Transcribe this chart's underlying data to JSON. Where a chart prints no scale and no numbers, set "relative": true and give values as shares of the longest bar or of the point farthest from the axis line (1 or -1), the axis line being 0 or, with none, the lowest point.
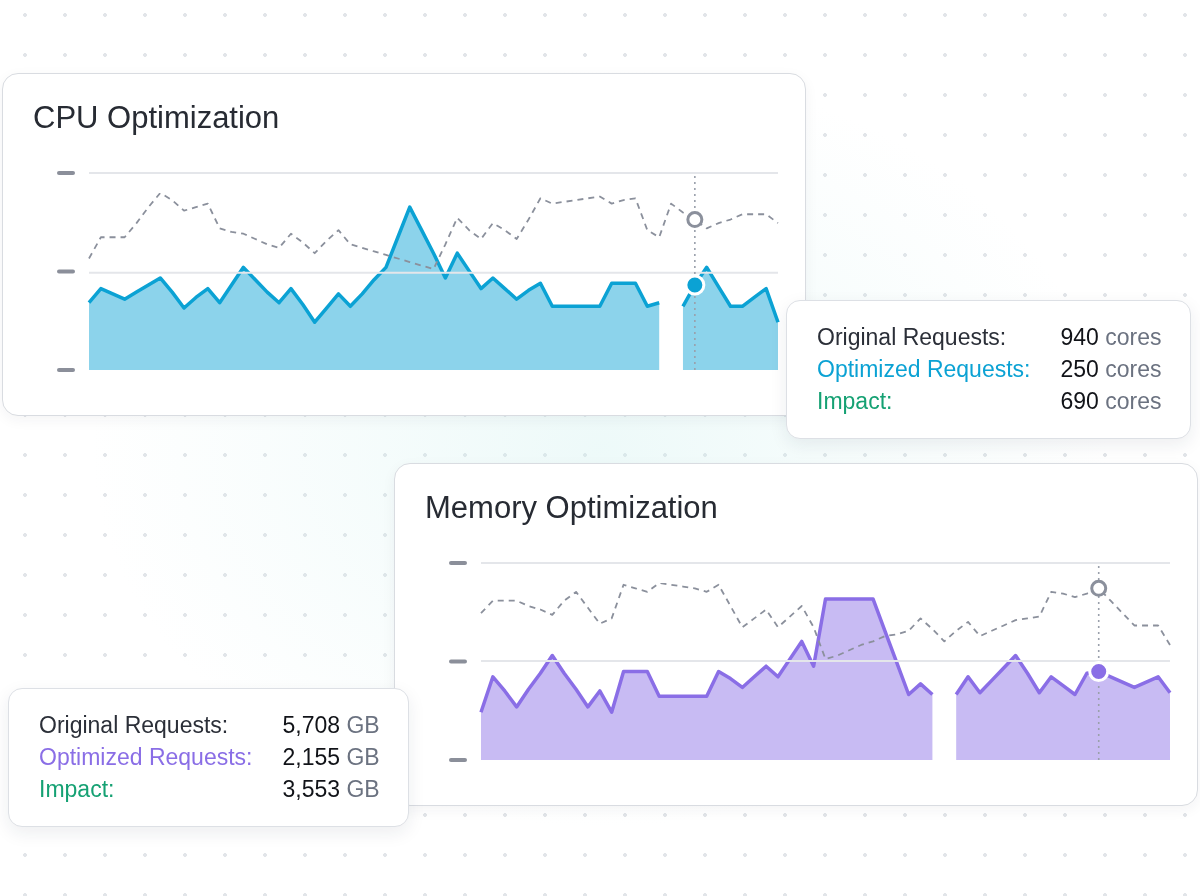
{
  "chart_data": [
    {
      "type": "area",
      "title": "CPU Optimization",
      "relative": true,
      "categories": [
        null,
        null,
        null,
        null,
        null,
        null,
        null,
        null,
        null,
        null,
        null,
        null,
        null,
        null,
        null,
        null,
        null,
        null,
        null,
        null,
        null,
        null,
        null,
        null,
        null,
        null,
        null,
        null,
        null,
        null,
        null,
        null,
        null,
        null,
        null,
        null,
        null,
        null,
        null,
        null,
        null,
        null,
        null,
        null,
        null,
        null,
        null,
        null,
        null,
        null,
        null,
        null,
        null,
        null,
        null,
        null,
        null,
        null,
        null
      ],
      "series": [
        {
          "color": "#0ba2d4",
          "values": [
            0.38,
            0.46,
            0.43,
            0.4,
            0.44,
            0.48,
            0.52,
            0.44,
            0.35,
            0.41,
            0.46,
            0.38,
            0.48,
            0.58,
            0.51,
            0.44,
            0.38,
            0.46,
            0.37,
            0.27,
            0.35,
            0.43,
            0.36,
            0.43,
            0.51,
            0.58,
            0.75,
            0.92,
            0.79,
            0.66,
            0.52,
            0.66,
            0.56,
            0.46,
            0.52,
            0.46,
            0.4,
            0.45,
            0.49,
            0.36,
            0.36,
            0.36,
            0.36,
            0.36,
            0.49,
            0.49,
            0.49,
            0.36,
            0.38,
            null,
            0.36,
            0.48,
            0.58,
            0.47,
            0.36,
            0.36,
            0.41,
            0.46,
            0.27
          ]
        },
        {
          "type": "line",
          "color": "#8b909c",
          "line_style": "dashed",
          "values": [
            0.63,
            0.75,
            0.75,
            0.75,
            0.83,
            0.92,
            1,
            0.96,
            0.9,
            0.92,
            0.94,
            0.8,
            0.78,
            0.77,
            0.74,
            0.71,
            0.69,
            0.77,
            0.72,
            0.66,
            0.73,
            0.79,
            0.71,
            0.69,
            0.67,
            0.65,
            0.63,
            0.61,
            0.59,
            0.57,
            0.71,
            0.86,
            0.79,
            0.74,
            0.83,
            0.79,
            0.74,
            0.85,
            0.97,
            0.94,
            0.95,
            0.96,
            0.97,
            0.98,
            0.94,
            0.96,
            0.97,
            0.79,
            0.75,
            0.94,
            0.89,
            0.85,
            0.8,
            0.83,
            0.85,
            0.88,
            0.88,
            0.88,
            0.83
          ]
        }
      ],
      "ref_lines": [
        {
          "axis": "y",
          "value": 0.55,
          "color": "#e4e6ea"
        }
      ],
      "annotations": [
        "Original Requests:",
        "940 cores",
        "Optimized Requests:",
        "250 cores",
        "Impact:",
        "690 cores"
      ]
    },
    {
      "type": "area",
      "title": "Memory Optimization",
      "relative": true,
      "categories": [
        null,
        null,
        null,
        null,
        null,
        null,
        null,
        null,
        null,
        null,
        null,
        null,
        null,
        null,
        null,
        null,
        null,
        null,
        null,
        null,
        null,
        null,
        null,
        null,
        null,
        null,
        null,
        null,
        null,
        null,
        null,
        null,
        null,
        null,
        null,
        null,
        null,
        null,
        null,
        null,
        null,
        null,
        null,
        null,
        null,
        null,
        null,
        null,
        null,
        null,
        null,
        null,
        null,
        null,
        null,
        null,
        null,
        null,
        null
      ],
      "series": [
        {
          "color": "#8a6ee6",
          "values": [
            0.27,
            0.47,
            0.39,
            0.3,
            0.4,
            0.49,
            0.59,
            0.49,
            0.4,
            0.3,
            0.39,
            0.27,
            0.5,
            0.5,
            0.5,
            0.36,
            0.36,
            0.36,
            0.36,
            0.36,
            0.5,
            0.46,
            0.41,
            0.47,
            0.53,
            0.47,
            0.57,
            0.67,
            0.53,
            0.91,
            0.91,
            0.91,
            0.91,
            0.91,
            0.73,
            0.55,
            0.37,
            0.43,
            0.37,
            null,
            0.37,
            0.47,
            0.38,
            0.45,
            0.52,
            0.59,
            0.49,
            0.38,
            0.47,
            0.42,
            0.37,
            0.49,
            0.5,
            0.47,
            0.44,
            0.41,
            0.44,
            0.47,
            0.38
          ]
        },
        {
          "type": "line",
          "color": "#8b909c",
          "line_style": "dashed",
          "values": [
            0.83,
            0.9,
            0.9,
            0.9,
            0.87,
            0.85,
            0.82,
            0.9,
            0.95,
            0.86,
            0.77,
            0.8,
            0.99,
            0.97,
            0.95,
            1,
            0.99,
            0.98,
            0.97,
            0.95,
            0.99,
            0.87,
            0.75,
            0.8,
            0.85,
            0.75,
            0.81,
            0.87,
            0.75,
            0.57,
            0.59,
            0.62,
            0.65,
            0.67,
            0.7,
            0.71,
            0.73,
            0.8,
            0.74,
            0.67,
            0.73,
            0.78,
            0.7,
            0.73,
            0.76,
            0.79,
            0.8,
            0.81,
            0.95,
            0.94,
            0.92,
            0.94,
            0.97,
            0.9,
            0.83,
            0.76,
            0.76,
            0.76,
            0.65
          ]
        }
      ],
      "ref_lines": [
        {
          "axis": "y",
          "value": 0.56,
          "color": "#e4e6ea"
        }
      ],
      "annotations": [
        "Original Requests:",
        "5,708 GB",
        "Optimized Requests:",
        "2,155 GB",
        "Impact:",
        "3,553 GB"
      ]
    }
  ]
}
